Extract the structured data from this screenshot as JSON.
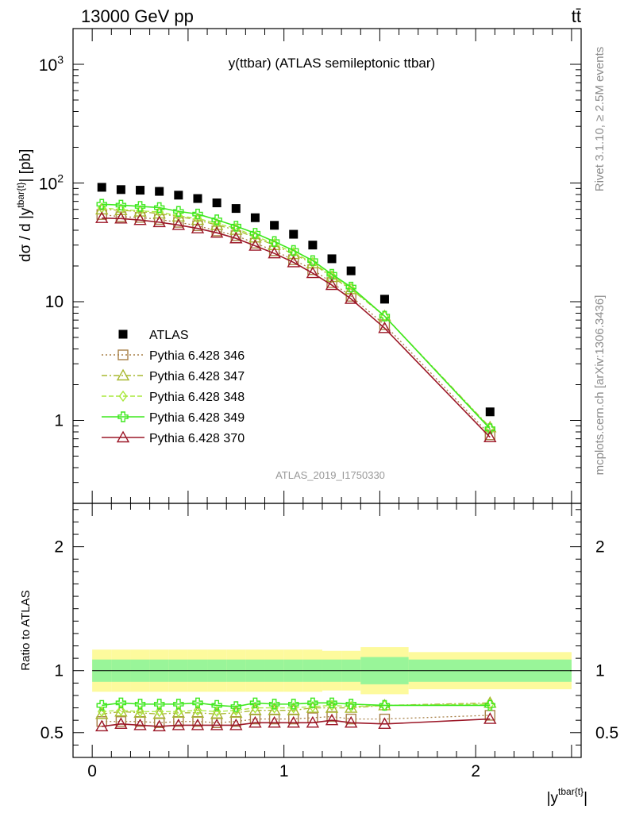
{
  "header": {
    "left": "13000 GeV pp",
    "right": "tt̄"
  },
  "side_labels": {
    "rivet": "Rivet 3.1.10, ≥ 2.5M events",
    "mcplots": "mcplots.cern.ch [arXiv:1306.3436]"
  },
  "chart_data": {
    "type": "scatter",
    "title": "y(ttbar) (ATLAS semileptonic ttbar)",
    "analysis_id": "ATLAS_2019_I1750330",
    "ylabel_main": "dσ / d |y^{tbar{t}}| [pb]",
    "ylabel_ratio": "Ratio to ATLAS",
    "xlabel": "|y^{tbar{t}}|",
    "xlim": [
      -0.1,
      2.55
    ],
    "ylim_main": [
      0.2,
      2000
    ],
    "ylim_ratio": [
      0.3,
      2.35
    ],
    "yscale_main": "log",
    "x_ticks": [
      {
        "value": 0,
        "label": "0"
      },
      {
        "value": 1,
        "label": "1"
      },
      {
        "value": 2,
        "label": "2"
      }
    ],
    "y_ticks_main": [
      {
        "value": 1,
        "label": "1"
      },
      {
        "value": 10,
        "label": "10"
      },
      {
        "value": 100,
        "label": "10",
        "exponent": "2"
      },
      {
        "value": 1000,
        "label": "10",
        "exponent": "3"
      }
    ],
    "y_ticks_ratio": [
      {
        "value": 0.5,
        "label": "0.5"
      },
      {
        "value": 1,
        "label": "1"
      },
      {
        "value": 2,
        "label": "2"
      }
    ],
    "x": [
      0.05,
      0.15,
      0.25,
      0.35,
      0.45,
      0.55,
      0.65,
      0.75,
      0.85,
      0.95,
      1.05,
      1.15,
      1.25,
      1.35,
      1.525,
      2.075
    ],
    "bin_edges": [
      0.0,
      0.1,
      0.2,
      0.3,
      0.4,
      0.5,
      0.6,
      0.7,
      0.8,
      0.9,
      1.0,
      1.1,
      1.2,
      1.3,
      1.4,
      1.65,
      2.5
    ],
    "data": {
      "name": "ATLAS",
      "values": [
        92,
        88,
        87,
        85,
        79,
        74,
        68,
        61,
        51,
        44,
        37,
        30,
        23,
        18.2,
        10.5,
        1.18
      ]
    },
    "stat_band": [
      0.91,
      0.91,
      0.91,
      0.91,
      0.91,
      0.91,
      0.91,
      0.91,
      0.91,
      0.91,
      0.91,
      0.91,
      0.91,
      0.91,
      0.89,
      0.91
    ],
    "total_band": [
      0.83,
      0.83,
      0.83,
      0.83,
      0.83,
      0.83,
      0.83,
      0.83,
      0.83,
      0.83,
      0.83,
      0.83,
      0.84,
      0.84,
      0.81,
      0.85
    ],
    "legend": {
      "position": "left-center",
      "data_label": "ATLAS"
    },
    "series": [
      {
        "name": "Pythia 6.428 346",
        "color": "#a88048",
        "marker": "square",
        "dash": "2,3",
        "ratio": [
          0.59,
          0.59,
          0.59,
          0.58,
          0.59,
          0.59,
          0.58,
          0.59,
          0.61,
          0.61,
          0.61,
          0.62,
          0.63,
          0.61,
          0.61,
          0.64
        ]
      },
      {
        "name": "Pythia 6.428 347",
        "color": "#a8b830",
        "marker": "triangle",
        "dash": "7,3,2,3",
        "ratio": [
          0.65,
          0.67,
          0.66,
          0.65,
          0.66,
          0.66,
          0.65,
          0.66,
          0.68,
          0.68,
          0.68,
          0.7,
          0.7,
          0.7,
          0.72,
          0.74
        ]
      },
      {
        "name": "Pythia 6.428 348",
        "color": "#a8e83c",
        "marker": "diamond",
        "dash": "6,3",
        "ratio": [
          0.67,
          0.68,
          0.67,
          0.67,
          0.67,
          0.68,
          0.67,
          0.68,
          0.7,
          0.7,
          0.7,
          0.71,
          0.72,
          0.71,
          0.72,
          0.73
        ]
      },
      {
        "name": "Pythia 6.428 349",
        "color": "#3ee81e",
        "marker": "cross",
        "dash": "",
        "ratio": [
          0.72,
          0.74,
          0.73,
          0.73,
          0.73,
          0.74,
          0.72,
          0.71,
          0.74,
          0.73,
          0.73,
          0.74,
          0.74,
          0.73,
          0.72,
          0.72
        ]
      },
      {
        "name": "Pythia 6.428 370",
        "color": "#9c1828",
        "marker": "triangle",
        "dash": "",
        "ratio": [
          0.55,
          0.57,
          0.56,
          0.55,
          0.56,
          0.56,
          0.56,
          0.56,
          0.58,
          0.58,
          0.58,
          0.58,
          0.6,
          0.58,
          0.57,
          0.61
        ]
      }
    ]
  },
  "colors": {
    "data_marker": "#000000",
    "stat_band": "#99f599",
    "total_band": "#fdfa9d",
    "axis": "#000000",
    "side_text": "#8c8c8c",
    "watermark": "#999999"
  }
}
